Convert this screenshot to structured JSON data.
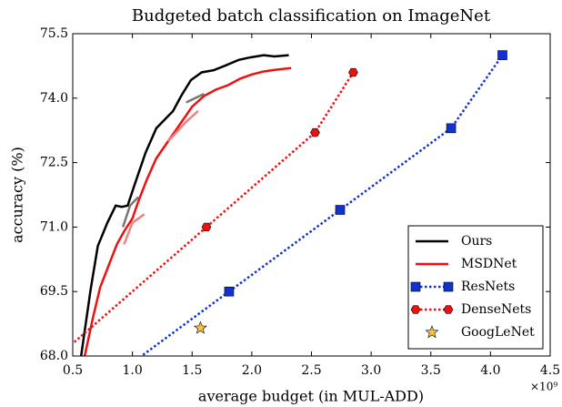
{
  "chart_data": {
    "type": "line",
    "title": "Budgeted batch classification on ImageNet",
    "xlabel": "average budget (in MUL-ADD)",
    "ylabel": "accuracy (%)",
    "x_multiplier": "×10⁹",
    "xlim": [
      0.5,
      4.5
    ],
    "xticks": [
      0.5,
      {
        "value": 1,
        "label": "1.0"
      },
      1.5,
      {
        "value": 2,
        "label": "2.0"
      },
      2.5,
      {
        "value": 3,
        "label": "3.0"
      },
      3.5,
      {
        "value": 4,
        "label": "4.0"
      },
      4.5
    ],
    "ylim": [
      68,
      75.5
    ],
    "yticks": [
      {
        "value": 68,
        "label": "68.0"
      },
      69.5,
      {
        "value": 71,
        "label": "71.0"
      },
      72.5,
      {
        "value": 74,
        "label": "74.0"
      },
      75.5
    ],
    "legend": "lower right",
    "series": [
      {
        "name": "Ours",
        "color": "#000000",
        "style": "solid",
        "x": [
          0.57,
          0.65,
          0.71,
          0.79,
          0.86,
          0.91,
          0.96,
          1.02,
          1.11,
          1.2,
          1.34,
          1.41,
          1.49,
          1.58,
          1.68,
          1.78,
          1.89,
          1.99,
          2.1,
          2.19,
          2.31
        ],
        "values": [
          68.0,
          69.55,
          70.56,
          71.1,
          71.5,
          71.47,
          71.5,
          72.0,
          72.73,
          73.3,
          73.7,
          74.06,
          74.42,
          74.6,
          74.65,
          74.76,
          74.89,
          74.95,
          75.0,
          74.97,
          75.0
        ]
      },
      {
        "name": "MSDNet",
        "color": "#ee1111",
        "style": "solid",
        "x": [
          0.6,
          0.67,
          0.73,
          0.8,
          0.87,
          0.93,
          1.0,
          1.05,
          1.12,
          1.2,
          1.3,
          1.4,
          1.5,
          1.6,
          1.7,
          1.8,
          1.9,
          2.0,
          2.1,
          2.2,
          2.33
        ],
        "values": [
          68.0,
          68.9,
          69.6,
          70.1,
          70.6,
          70.9,
          71.2,
          71.6,
          72.1,
          72.6,
          73.0,
          73.4,
          73.8,
          74.05,
          74.2,
          74.3,
          74.45,
          74.55,
          74.62,
          74.66,
          74.7
        ]
      },
      {
        "name": "ResNets",
        "color": "#1133cc",
        "style": "dotted",
        "marker": "square",
        "x": [
          1.81,
          2.74,
          3.67,
          4.1
        ],
        "values": [
          69.5,
          71.4,
          73.3,
          75.0
        ]
      },
      {
        "name": "DenseNets",
        "color": "#ee1111",
        "style": "dotted",
        "marker": "circle",
        "x": [
          1.62,
          2.53,
          2.85
        ],
        "values": [
          71.0,
          73.2,
          74.6
        ]
      },
      {
        "name": "GoogLeNet",
        "color": "#f5c242",
        "style": "none",
        "marker": "star",
        "x": [
          1.57
        ],
        "values": [
          68.65
        ]
      },
      {
        "color": "#777777",
        "style": "solid",
        "x": [
          0.92,
          0.98,
          1.05
        ],
        "values": [
          71.0,
          71.5,
          71.7
        ]
      },
      {
        "color": "#777777",
        "style": "solid",
        "x": [
          1.45,
          1.6
        ],
        "values": [
          73.9,
          74.1
        ]
      },
      {
        "color": "#f08080",
        "style": "solid",
        "x": [
          0.93,
          1.0,
          1.1
        ],
        "values": [
          70.6,
          71.1,
          71.3
        ]
      },
      {
        "color": "#f08080",
        "style": "solid",
        "x": [
          1.3,
          1.45,
          1.55
        ],
        "values": [
          73.0,
          73.45,
          73.7
        ]
      }
    ]
  }
}
